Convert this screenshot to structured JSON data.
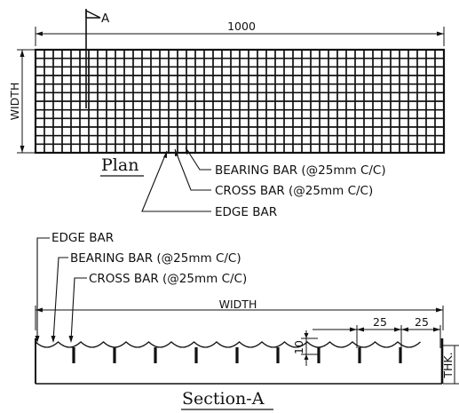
{
  "plan": {
    "section_marker": "A",
    "length_dim": "1000",
    "width_dim": "WIDTH",
    "title": "Plan",
    "callouts": [
      "BEARING BAR (@25mm C/C)",
      "CROSS BAR (@25mm C/C)",
      "EDGE BAR"
    ]
  },
  "section": {
    "callouts": [
      "EDGE BAR",
      "BEARING BAR (@25mm C/C)",
      "CROSS BAR (@25mm C/C)"
    ],
    "width_dim": "WIDTH",
    "spacing_1": "25",
    "spacing_2": "25",
    "height_dim": "10",
    "thk_dim": "THK.",
    "title": "Section-A"
  }
}
